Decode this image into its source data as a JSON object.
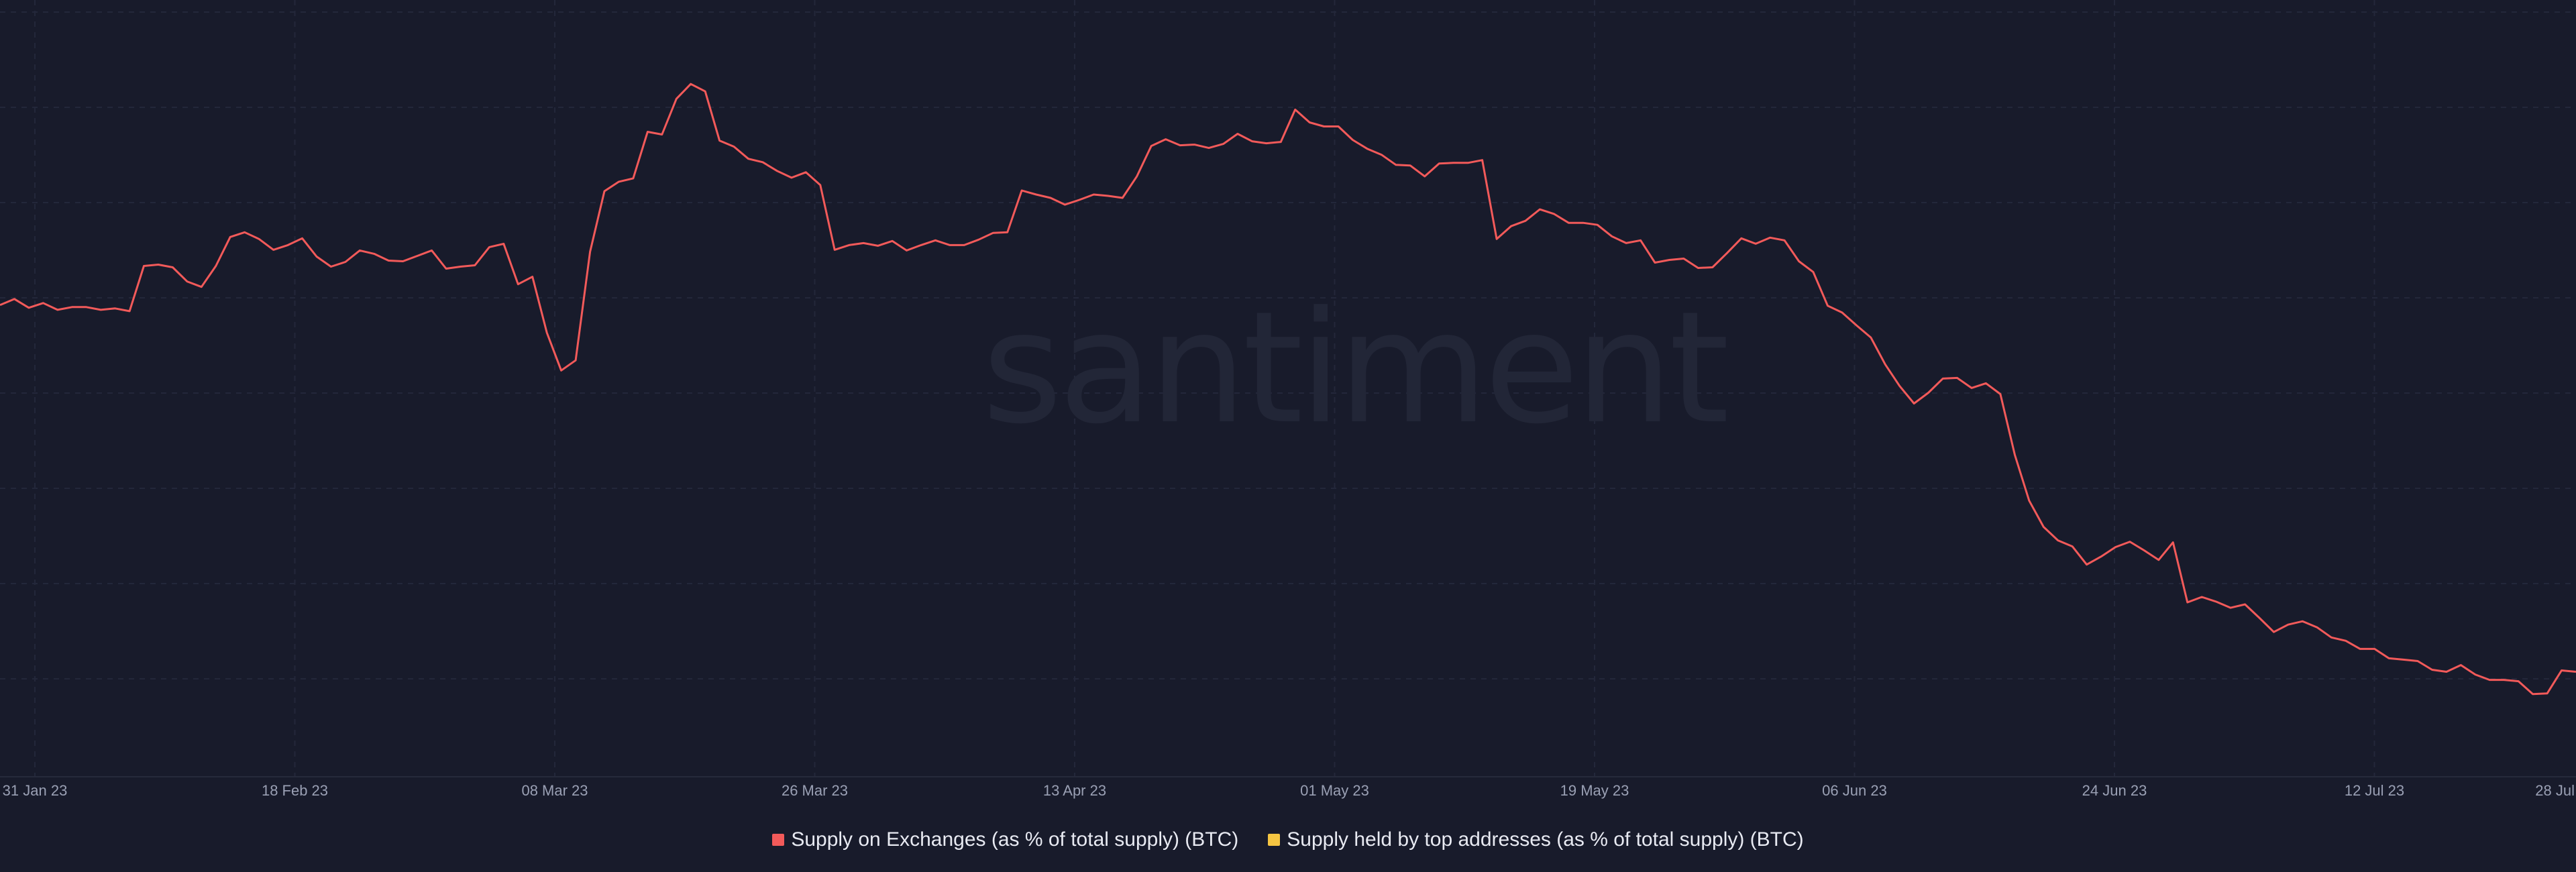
{
  "watermark": "santiment",
  "chart_data": {
    "type": "line",
    "title": "",
    "xlabel": "",
    "ylabel": "",
    "grid": true,
    "legend_position": "bottom-center",
    "x_tick_labels": [
      "31 Jan 23",
      "18 Feb 23",
      "08 Mar 23",
      "26 Mar 23",
      "13 Apr 23",
      "01 May 23",
      "19 May 23",
      "06 Jun 23",
      "24 Jun 23",
      "12 Jul 23",
      "28 Jul"
    ],
    "x_range": [
      "2023-01-31",
      "2023-07-28"
    ],
    "y_ticks_shown": false,
    "series": [
      {
        "name": "Supply on Exchanges (as % of total supply) (BTC)",
        "color": "#f25a5a",
        "note": "relative values on a 0-100 scale (y-axis unlabeled in original)",
        "values": [
          63.7,
          64.6,
          63.3,
          64.0,
          63.0,
          63.4,
          63.4,
          63.0,
          63.2,
          62.8,
          69.5,
          69.7,
          69.3,
          67.2,
          66.4,
          69.5,
          73.8,
          74.5,
          73.5,
          71.9,
          72.6,
          73.6,
          70.9,
          69.4,
          70.1,
          71.8,
          71.3,
          70.3,
          70.2,
          71.0,
          71.8,
          69.1,
          69.4,
          69.6,
          72.3,
          72.8,
          66.8,
          67.9,
          59.6,
          54.0,
          55.5,
          71.6,
          80.6,
          82.0,
          82.5,
          89.4,
          89.0,
          94.3,
          96.5,
          95.4,
          88.1,
          87.2,
          85.4,
          84.9,
          83.6,
          82.6,
          83.4,
          81.5,
          71.9,
          72.6,
          72.9,
          72.5,
          73.2,
          71.8,
          72.6,
          73.3,
          72.6,
          72.6,
          73.4,
          74.4,
          74.5,
          80.7,
          80.1,
          79.6,
          78.6,
          79.3,
          80.1,
          79.9,
          79.6,
          82.8,
          87.3,
          88.3,
          87.4,
          87.5,
          87.0,
          87.6,
          89.1,
          88.0,
          87.7,
          87.9,
          92.7,
          90.8,
          90.2,
          90.2,
          88.2,
          86.9,
          86.0,
          84.5,
          84.4,
          82.8,
          84.7,
          84.8,
          84.8,
          85.2,
          73.5,
          75.4,
          76.2,
          77.9,
          77.2,
          75.9,
          75.9,
          75.6,
          73.9,
          72.9,
          73.3,
          70.0,
          70.4,
          70.6,
          69.2,
          69.3,
          71.4,
          73.6,
          72.8,
          73.7,
          73.3,
          70.2,
          68.6,
          63.6,
          62.6,
          60.7,
          58.9,
          54.9,
          51.7,
          49.1,
          50.7,
          52.8,
          52.9,
          51.4,
          52.1,
          50.5,
          41.5,
          34.7,
          30.8,
          28.8,
          27.9,
          25.2,
          26.4,
          27.8,
          28.6,
          27.3,
          25.9,
          28.5,
          19.6,
          20.4,
          19.7,
          18.8,
          19.3,
          17.3,
          15.2,
          16.3,
          16.8,
          15.9,
          14.4,
          13.9,
          12.7,
          12.7,
          11.3,
          11.1,
          10.9,
          9.6,
          9.3,
          10.3,
          8.9,
          8.1,
          8.1,
          7.9,
          6.0,
          6.1,
          9.5,
          9.3
        ]
      },
      {
        "name": "Supply held by top addresses (as % of total supply) (BTC)",
        "color": "#f5c542",
        "values": []
      }
    ]
  }
}
